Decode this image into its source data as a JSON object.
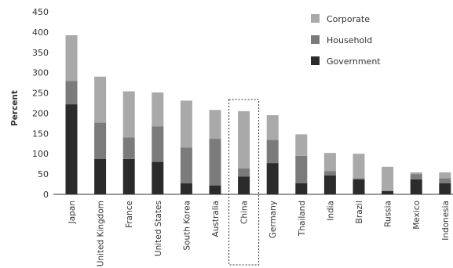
{
  "chart_data": {
    "type": "bar",
    "stacked": true,
    "ylabel": "Percent",
    "ylim": [
      0,
      450
    ],
    "yticks": [
      0,
      50,
      100,
      150,
      200,
      250,
      300,
      350,
      400,
      450
    ],
    "categories": [
      "Japan",
      "United Kingdom",
      "France",
      "United States",
      "South Korea",
      "Australia",
      "China",
      "Germany",
      "Thailand",
      "India",
      "Brazil",
      "Russia",
      "Mexico",
      "Indonesia"
    ],
    "highlighted_category": "China",
    "series": [
      {
        "name": "Government",
        "color": "#2b2b2b",
        "values": [
          222,
          87,
          87,
          80,
          27,
          22,
          44,
          77,
          27,
          47,
          37,
          8,
          37,
          27
        ]
      },
      {
        "name": "Household",
        "color": "#7b7b7b",
        "values": [
          57,
          90,
          53,
          87,
          88,
          115,
          20,
          57,
          68,
          10,
          3,
          2,
          13,
          13
        ]
      },
      {
        "name": "Corporate",
        "color": "#a9a9a9",
        "values": [
          113,
          113,
          114,
          84,
          116,
          71,
          141,
          61,
          53,
          45,
          60,
          58,
          4,
          14
        ]
      }
    ],
    "legend": {
      "position": "top-right",
      "order": [
        "Corporate",
        "Household",
        "Government"
      ]
    },
    "grid": false
  }
}
